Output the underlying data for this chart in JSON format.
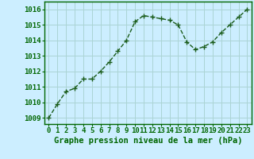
{
  "x": [
    0,
    1,
    2,
    3,
    4,
    5,
    6,
    7,
    8,
    9,
    10,
    11,
    12,
    13,
    14,
    15,
    16,
    17,
    18,
    19,
    20,
    21,
    22,
    23
  ],
  "y": [
    1009.0,
    1009.9,
    1010.7,
    1010.9,
    1011.5,
    1011.5,
    1012.0,
    1012.6,
    1013.3,
    1014.0,
    1015.2,
    1015.6,
    1015.5,
    1015.4,
    1015.3,
    1015.0,
    1013.9,
    1013.4,
    1013.6,
    1013.9,
    1014.5,
    1015.0,
    1015.5,
    1016.0
  ],
  "line_color": "#1a5c1a",
  "marker": "+",
  "marker_size": 4,
  "background_color": "#cceeff",
  "grid_color": "#aad4d4",
  "xlabel": "Graphe pression niveau de la mer (hPa)",
  "xlabel_color": "#006600",
  "xlabel_fontsize": 7.5,
  "xtick_labels": [
    "0",
    "1",
    "2",
    "3",
    "4",
    "5",
    "6",
    "7",
    "8",
    "9",
    "10",
    "11",
    "12",
    "13",
    "14",
    "15",
    "16",
    "17",
    "18",
    "19",
    "20",
    "21",
    "22",
    "23"
  ],
  "ytick_labels": [
    "1009",
    "1010",
    "1011",
    "1012",
    "1013",
    "1014",
    "1015",
    "1016"
  ],
  "yticks": [
    1009,
    1010,
    1011,
    1012,
    1013,
    1014,
    1015,
    1016
  ],
  "ylim": [
    1008.6,
    1016.5
  ],
  "xlim": [
    -0.5,
    23.5
  ],
  "tick_color": "#006600",
  "tick_fontsize": 6.5,
  "border_color": "#006600",
  "line_width": 1.0,
  "marker_color": "#1a5c1a",
  "outer_bg": "#cceeff"
}
